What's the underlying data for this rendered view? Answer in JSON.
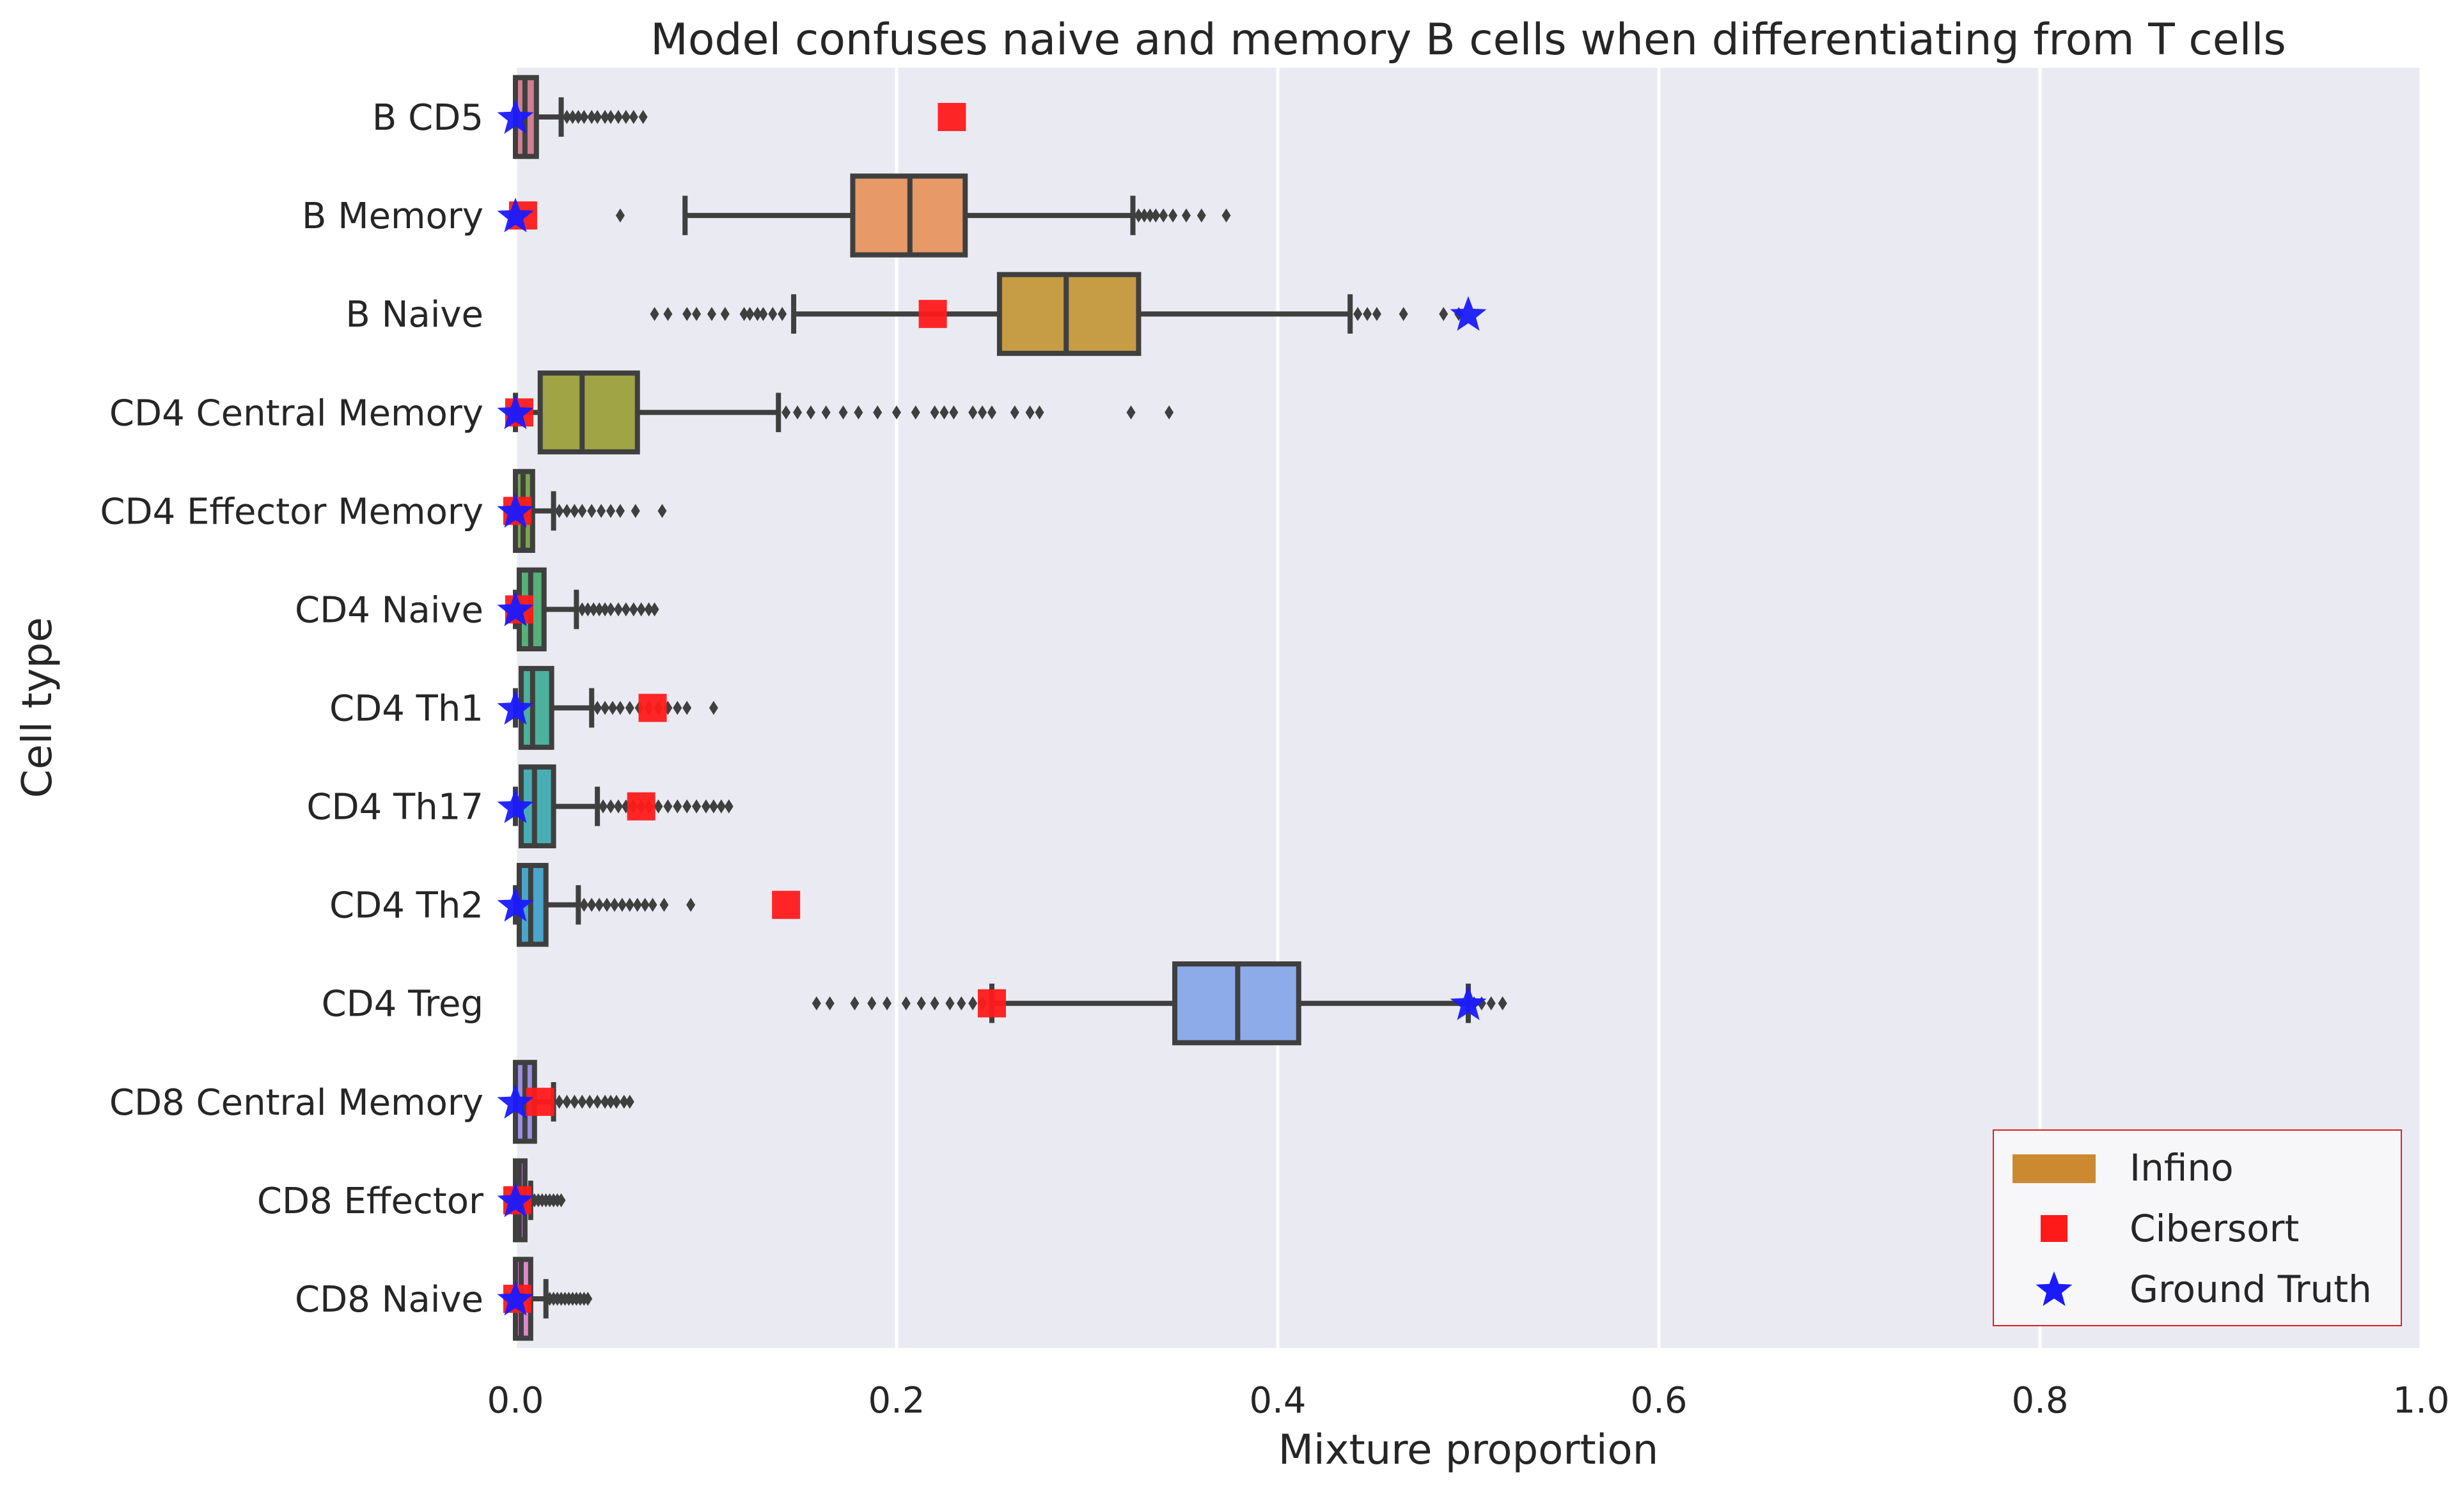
{
  "chart_data": {
    "type": "box",
    "orientation": "horizontal",
    "title": "Model confuses naive and memory B cells when differentiating from T cells",
    "xlabel": "Mixture proportion",
    "ylabel": "Cell type",
    "xlim": [
      0.0,
      1.0
    ],
    "xticks": [
      0.0,
      0.2,
      0.4,
      0.6,
      0.8,
      1.0
    ],
    "xtick_labels": [
      "0.0",
      "0.2",
      "0.4",
      "0.6",
      "0.8",
      "1.0"
    ],
    "grid": true,
    "legend_position": "lower-right",
    "legend": [
      {
        "label": "Infino",
        "marker": "patch",
        "color": "#cc8a30"
      },
      {
        "label": "Cibersort",
        "marker": "square",
        "color": "#ff1a1a"
      },
      {
        "label": "Ground Truth",
        "marker": "star",
        "color": "#1a1aff"
      }
    ],
    "categories": [
      "B CD5",
      "B Memory",
      "B Naive",
      "CD4 Central Memory",
      "CD4 Effector Memory",
      "CD4 Naive",
      "CD4 Th1",
      "CD4 Th17",
      "CD4 Th2",
      "CD4 Treg",
      "CD8 Central Memory",
      "CD8 Effector",
      "CD8 Naive"
    ],
    "boxes": [
      {
        "q1": 0.0,
        "median": 0.005,
        "q3": 0.011,
        "whisker_low": 0.0,
        "whisker_high": 0.024,
        "color": "#cf7f92",
        "outliers": [
          0.027,
          0.03,
          0.033,
          0.036,
          0.04,
          0.043,
          0.047,
          0.05,
          0.054,
          0.058,
          0.062,
          0.067
        ]
      },
      {
        "q1": 0.177,
        "median": 0.207,
        "q3": 0.236,
        "whisker_low": 0.089,
        "whisker_high": 0.324,
        "color": "#e79968",
        "outliers": [
          0.055,
          0.327,
          0.33,
          0.333,
          0.336,
          0.34,
          0.345,
          0.352,
          0.36,
          0.373
        ]
      },
      {
        "q1": 0.254,
        "median": 0.289,
        "q3": 0.327,
        "whisker_low": 0.146,
        "whisker_high": 0.438,
        "color": "#c69c45",
        "outliers": [
          0.073,
          0.08,
          0.09,
          0.095,
          0.103,
          0.11,
          0.12,
          0.123,
          0.127,
          0.13,
          0.135,
          0.14,
          0.442,
          0.447,
          0.452,
          0.466,
          0.487,
          0.495
        ]
      },
      {
        "q1": 0.013,
        "median": 0.035,
        "q3": 0.064,
        "whisker_low": 0.0,
        "whisker_high": 0.138,
        "color": "#a1a444",
        "outliers": [
          0.142,
          0.148,
          0.155,
          0.163,
          0.172,
          0.18,
          0.19,
          0.2,
          0.21,
          0.22,
          0.225,
          0.23,
          0.24,
          0.245,
          0.25,
          0.262,
          0.27,
          0.275,
          0.323,
          0.343
        ]
      },
      {
        "q1": 0.0,
        "median": 0.004,
        "q3": 0.009,
        "whisker_low": 0.0,
        "whisker_high": 0.02,
        "color": "#7ea450",
        "outliers": [
          0.023,
          0.027,
          0.031,
          0.035,
          0.04,
          0.045,
          0.05,
          0.055,
          0.063,
          0.077
        ]
      },
      {
        "q1": 0.002,
        "median": 0.008,
        "q3": 0.015,
        "whisker_low": 0.0,
        "whisker_high": 0.032,
        "color": "#56b077",
        "outliers": [
          0.035,
          0.038,
          0.041,
          0.044,
          0.047,
          0.05,
          0.054,
          0.058,
          0.062,
          0.066,
          0.07,
          0.073
        ]
      },
      {
        "q1": 0.003,
        "median": 0.009,
        "q3": 0.019,
        "whisker_low": 0.0,
        "whisker_high": 0.04,
        "color": "#4db19b",
        "outliers": [
          0.043,
          0.047,
          0.051,
          0.055,
          0.06,
          0.065,
          0.07,
          0.075,
          0.08,
          0.085,
          0.09,
          0.104
        ]
      },
      {
        "q1": 0.003,
        "median": 0.01,
        "q3": 0.02,
        "whisker_low": 0.0,
        "whisker_high": 0.043,
        "color": "#49aeb4",
        "outliers": [
          0.046,
          0.05,
          0.054,
          0.058,
          0.062,
          0.066,
          0.07,
          0.075,
          0.08,
          0.085,
          0.09,
          0.095,
          0.1,
          0.104,
          0.108,
          0.112
        ]
      },
      {
        "q1": 0.002,
        "median": 0.008,
        "q3": 0.016,
        "whisker_low": 0.0,
        "whisker_high": 0.033,
        "color": "#4aa6cc",
        "outliers": [
          0.036,
          0.04,
          0.044,
          0.048,
          0.052,
          0.056,
          0.06,
          0.064,
          0.068,
          0.072,
          0.078,
          0.092
        ]
      },
      {
        "q1": 0.346,
        "median": 0.379,
        "q3": 0.411,
        "whisker_low": 0.25,
        "whisker_high": 0.5,
        "color": "#8dabe8",
        "outliers": [
          0.158,
          0.165,
          0.178,
          0.187,
          0.195,
          0.205,
          0.213,
          0.22,
          0.228,
          0.234,
          0.24,
          0.245,
          0.503,
          0.507,
          0.512,
          0.518
        ]
      },
      {
        "q1": 0.0,
        "median": 0.005,
        "q3": 0.01,
        "whisker_low": 0.0,
        "whisker_high": 0.02,
        "color": "#9b8fe0",
        "outliers": [
          0.023,
          0.027,
          0.031,
          0.035,
          0.039,
          0.043,
          0.047,
          0.05,
          0.053,
          0.057,
          0.06
        ]
      },
      {
        "q1": 0.0,
        "median": 0.002,
        "q3": 0.005,
        "whisker_low": 0.0,
        "whisker_high": 0.008,
        "color": "#c58ee0",
        "outliers": [
          0.01,
          0.012,
          0.014,
          0.016,
          0.018,
          0.02,
          0.022,
          0.024
        ]
      },
      {
        "q1": 0.0,
        "median": 0.003,
        "q3": 0.008,
        "whisker_low": 0.0,
        "whisker_high": 0.016,
        "color": "#de87c9",
        "outliers": [
          0.018,
          0.02,
          0.022,
          0.024,
          0.026,
          0.028,
          0.03,
          0.032,
          0.034,
          0.036,
          0.038
        ]
      }
    ],
    "cibersort": [
      0.229,
      0.004,
      0.219,
      0.002,
      0.001,
      0.002,
      0.072,
      0.066,
      0.142,
      0.25,
      0.013,
      0.001,
      0.001
    ],
    "ground_truth": [
      0.0,
      0.0,
      0.5,
      0.0,
      0.0,
      0.0,
      0.0,
      0.0,
      0.0,
      0.5,
      0.0,
      0.0,
      0.0
    ]
  }
}
